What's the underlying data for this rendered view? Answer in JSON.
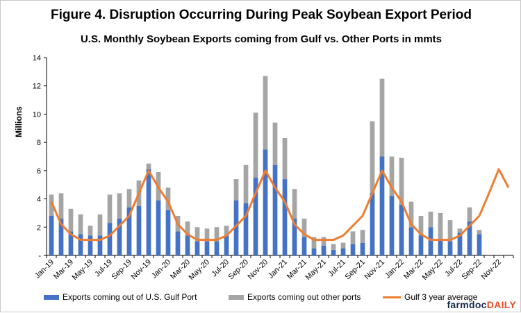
{
  "title": "Figure 4. Disruption Occurring During Peak Soybean Export Period",
  "subtitle": "U.S. Monthly Soybean Exports coming from Gulf vs. Other Ports in mmts",
  "brand": {
    "part1": "farmdoc",
    "part2": "DAILY"
  },
  "colors": {
    "gulf": "#4472C4",
    "other": "#A5A5A5",
    "avg": "#ED7D31"
  },
  "legend": {
    "gulf": "Exports coming out of U.S. Gulf Port",
    "other": "Exports coming out other ports",
    "avg": "Gulf 3 year average"
  },
  "chart_data": {
    "type": "bar",
    "stacked": true,
    "ylabel": "Millions",
    "ylim": [
      0,
      14
    ],
    "yticks": [
      "-",
      "2",
      "4",
      "6",
      "8",
      "10",
      "12",
      "14"
    ],
    "grid": false,
    "legend_position": "bottom",
    "categories": [
      "Jan-19",
      "Feb-19",
      "Mar-19",
      "Apr-19",
      "May-19",
      "Jun-19",
      "Jul-19",
      "Aug-19",
      "Sep-19",
      "Oct-19",
      "Nov-19",
      "Dec-19",
      "Jan-20",
      "Feb-20",
      "Mar-20",
      "Apr-20",
      "May-20",
      "Jun-20",
      "Jul-20",
      "Aug-20",
      "Sep-20",
      "Oct-20",
      "Nov-20",
      "Dec-20",
      "Jan-21",
      "Feb-21",
      "Mar-21",
      "Apr-21",
      "May-21",
      "Jun-21",
      "Jul-21",
      "Aug-21",
      "Sep-21",
      "Oct-21",
      "Nov-21",
      "Dec-21",
      "Jan-22",
      "Feb-22",
      "Mar-22",
      "Apr-22",
      "May-22",
      "Jun-22",
      "Jul-22",
      "Aug-22",
      "Sep-22",
      "Oct-22",
      "Nov-22",
      "Dec-22"
    ],
    "tick_labels": [
      "Jan-19",
      "Mar-19",
      "May-19",
      "Jul-19",
      "Sep-19",
      "Nov-19",
      "Jan-20",
      "Mar-20",
      "May-20",
      "Jul-20",
      "Sep-20",
      "Nov-20",
      "Jan-21",
      "Mar-21",
      "May-21",
      "Jul-21",
      "Sep-21",
      "Nov-21",
      "Jan-22",
      "Mar-22",
      "May-22",
      "Jul-22",
      "Sep-22",
      "Nov-22"
    ],
    "series": [
      {
        "name": "Exports coming out of U.S. Gulf Port",
        "kind": "bar",
        "values": [
          2.8,
          2.6,
          1.7,
          1.5,
          1.4,
          1.4,
          2.3,
          2.6,
          3.4,
          3.5,
          6.1,
          3.9,
          3.2,
          1.7,
          1.4,
          1.0,
          1.0,
          1.0,
          1.4,
          3.9,
          3.7,
          5.5,
          7.5,
          6.4,
          5.4,
          2.6,
          1.3,
          0.5,
          0.7,
          0.4,
          0.5,
          0.8,
          0.9,
          4.4,
          7.0,
          4.2,
          3.6,
          2.0,
          1.4,
          2.0,
          1.1,
          1.0,
          1.6,
          2.4,
          1.5,
          null,
          null,
          null
        ]
      },
      {
        "name": "Exports coming out other ports",
        "kind": "bar",
        "values": [
          1.5,
          1.8,
          1.6,
          1.4,
          0.7,
          1.5,
          2.0,
          1.8,
          1.3,
          1.8,
          0.4,
          2.0,
          1.6,
          1.1,
          1.0,
          1.0,
          0.9,
          1.0,
          0.7,
          1.5,
          2.7,
          4.6,
          5.2,
          3.0,
          2.9,
          2.1,
          1.3,
          0.8,
          0.6,
          0.4,
          0.4,
          0.9,
          0.9,
          5.1,
          5.5,
          2.8,
          3.3,
          1.8,
          1.4,
          1.1,
          1.9,
          1.5,
          0.3,
          1.0,
          0.3,
          null,
          null,
          null
        ]
      },
      {
        "name": "Gulf 3 year average",
        "kind": "line",
        "values": [
          3.8,
          2.2,
          1.5,
          1.1,
          1.1,
          1.1,
          1.4,
          2.1,
          2.8,
          4.4,
          6.0,
          4.8,
          3.8,
          2.2,
          1.5,
          1.1,
          1.1,
          1.1,
          1.4,
          2.1,
          2.8,
          4.4,
          6.0,
          4.8,
          3.8,
          2.2,
          1.5,
          1.1,
          1.1,
          1.1,
          1.4,
          2.1,
          2.8,
          4.4,
          6.0,
          4.8,
          3.8,
          2.2,
          1.5,
          1.1,
          1.1,
          1.1,
          1.4,
          2.1,
          2.8,
          4.4,
          6.1,
          4.8
        ]
      }
    ]
  }
}
